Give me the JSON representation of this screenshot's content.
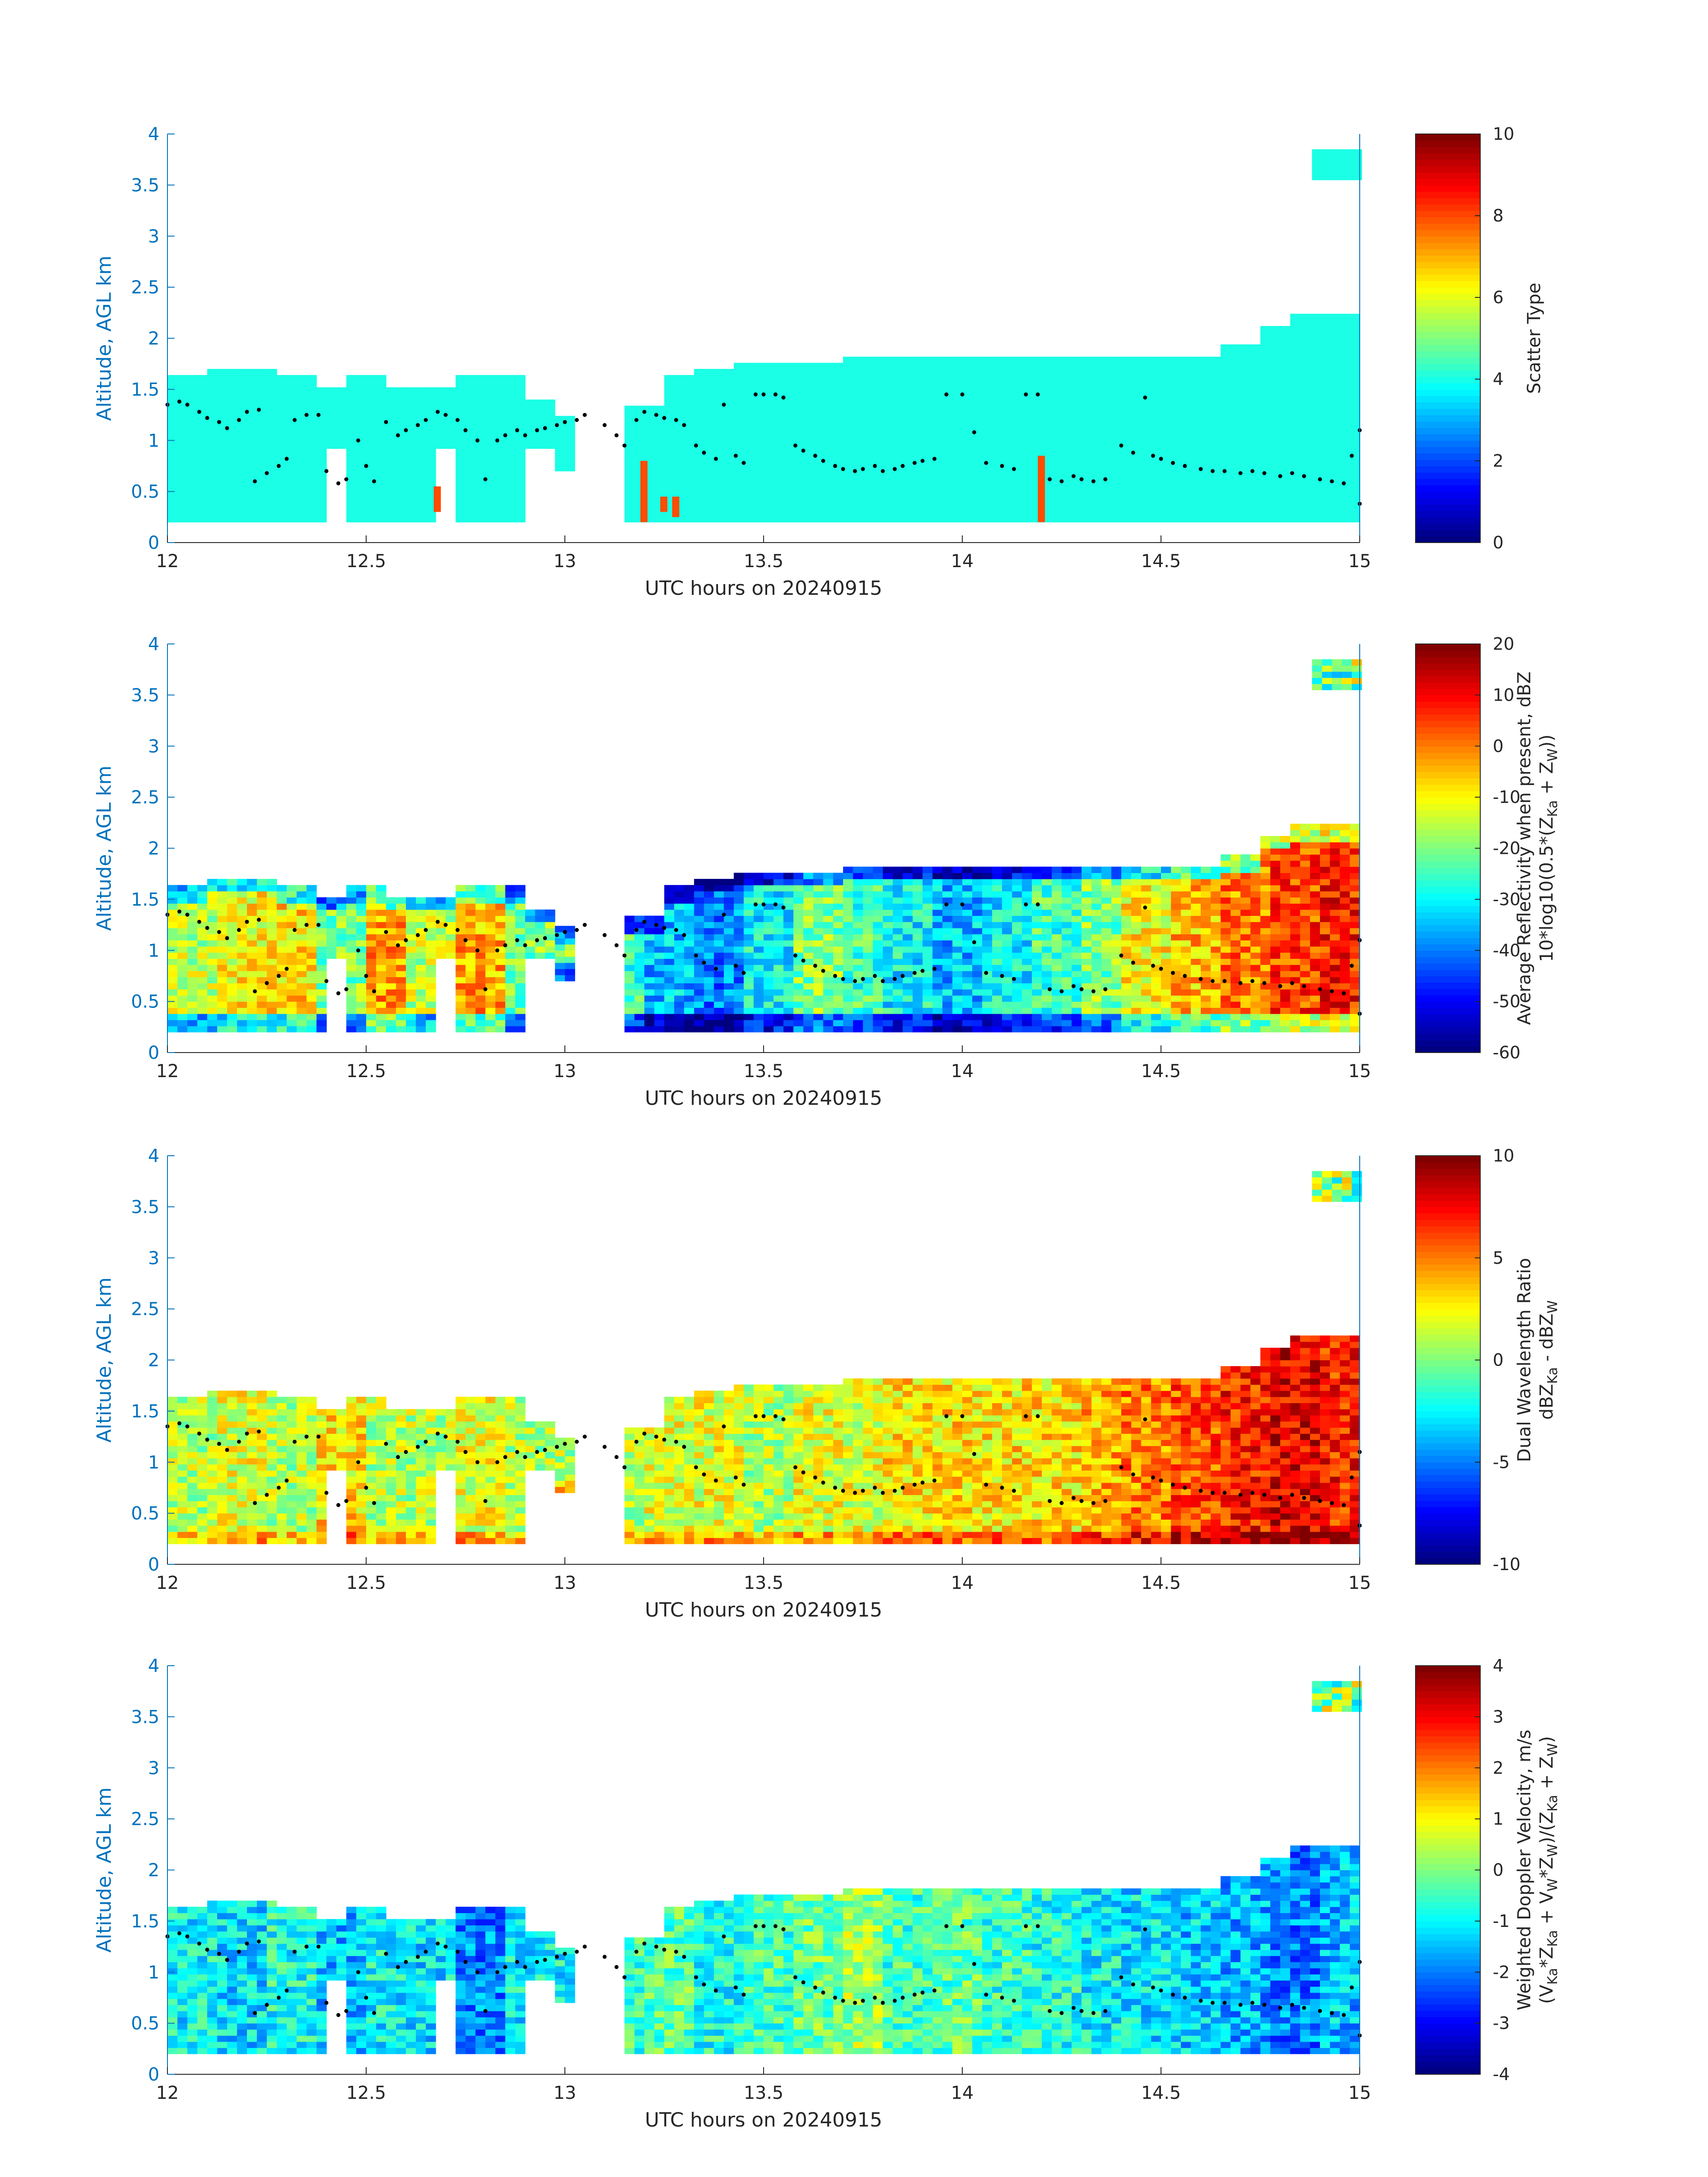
{
  "chart_data": [
    {
      "type": "heatmap",
      "panel": "scatter_type",
      "xlabel": "UTC hours on 20240915",
      "ylabel": "Altitude, AGL km",
      "xlim": [
        12,
        15
      ],
      "ylim": [
        0,
        4
      ],
      "xticks": [
        "12",
        "12.5",
        "13",
        "13.5",
        "14",
        "14.5",
        "15"
      ],
      "yticks": [
        "0",
        "0.5",
        "1",
        "1.5",
        "2",
        "2.5",
        "3",
        "3.5",
        "4"
      ],
      "colorbar": {
        "label_lines": [
          "Scatter Type"
        ],
        "clim": [
          0,
          10
        ],
        "ticks": [
          "0",
          "2",
          "4",
          "6",
          "8",
          "10"
        ]
      },
      "dominant_value": 4,
      "cloud_top_km": [
        1.6,
        1.7,
        1.7,
        1.6,
        1.5,
        1.6,
        1.5,
        1.5,
        1.6,
        1.6,
        1.4,
        1.2,
        null,
        1.3,
        1.6,
        1.7,
        1.75,
        1.75,
        1.75,
        1.8,
        1.8,
        1.8,
        1.8,
        1.8,
        1.8,
        1.8,
        1.8,
        1.8,
        1.8,
        1.8,
        1.9,
        2.1,
        2.2,
        2.2
      ],
      "cloud_base_km": [
        0.2,
        0.2,
        0.2,
        0.2,
        0.2,
        0.2,
        0.2,
        0.2,
        0.2,
        0.2,
        0.2,
        0.7,
        null,
        0.2,
        0.2,
        0.2,
        0.2,
        0.2,
        0.2,
        0.2,
        0.2,
        0.2,
        0.2,
        0.2,
        0.2,
        0.2,
        0.2,
        0.2,
        0.2,
        0.2,
        0.2,
        0.2,
        0.2,
        0.2
      ],
      "anomalies": [
        {
          "x": 12.67,
          "y0": 0.3,
          "y1": 0.55,
          "value": 8
        },
        {
          "x": 13.19,
          "y0": 0.2,
          "y1": 0.8,
          "value": 8
        },
        {
          "x": 13.24,
          "y0": 0.3,
          "y1": 0.45,
          "value": 8
        },
        {
          "x": 13.27,
          "y0": 0.25,
          "y1": 0.45,
          "value": 8
        },
        {
          "x": 14.19,
          "y0": 0.2,
          "y1": 0.85,
          "value": 8
        }
      ]
    },
    {
      "type": "heatmap",
      "panel": "reflectivity",
      "xlabel": "UTC hours on 20240915",
      "ylabel": "Altitude, AGL km",
      "xlim": [
        12,
        15
      ],
      "ylim": [
        0,
        4
      ],
      "xticks": [
        "12",
        "12.5",
        "13",
        "13.5",
        "14",
        "14.5",
        "15"
      ],
      "yticks": [
        "0",
        "0.5",
        "1",
        "1.5",
        "2",
        "2.5",
        "3",
        "3.5",
        "4"
      ],
      "colorbar": {
        "label_lines": [
          "Average Reflectivity when present, dBZ",
          "10*log10(0.5*(Z",
          "Ka",
          " + Z",
          "W",
          "))"
        ],
        "clim": [
          -60,
          20
        ],
        "ticks": [
          "-60",
          "-50",
          "-40",
          "-30",
          "-20",
          "-10",
          "0",
          "10",
          "20"
        ]
      },
      "segment_means_dbz": [
        -15,
        -10,
        -8,
        -20,
        -2,
        -15,
        -3,
        -20,
        null,
        -25,
        -35,
        -40,
        -30,
        -20,
        -25,
        -30,
        -35,
        -30,
        -25,
        -20,
        -10,
        -5,
        0,
        5,
        8
      ]
    },
    {
      "type": "heatmap",
      "panel": "dual_wavelength_ratio",
      "xlabel": "UTC hours on 20240915",
      "ylabel": "Altitude, AGL km",
      "xlim": [
        12,
        15
      ],
      "ylim": [
        0,
        4
      ],
      "xticks": [
        "12",
        "12.5",
        "13",
        "13.5",
        "14",
        "14.5",
        "15"
      ],
      "yticks": [
        "0",
        "0.5",
        "1",
        "1.5",
        "2",
        "2.5",
        "3",
        "3.5",
        "4"
      ],
      "colorbar": {
        "label_lines": [
          "Dual Wavelength Ratio",
          "dBZ",
          "Ka",
          " - dBZ",
          "W"
        ],
        "clim": [
          -10,
          10
        ],
        "ticks": [
          "-10",
          "-5",
          "0",
          "5",
          "10"
        ]
      },
      "segment_means_db": [
        1,
        2,
        1,
        3,
        1,
        1,
        2,
        1,
        null,
        1,
        2,
        2,
        1,
        2,
        2,
        3,
        3,
        3,
        3,
        4,
        5,
        6,
        7,
        8,
        7
      ]
    },
    {
      "type": "heatmap",
      "panel": "doppler_velocity",
      "xlabel": "UTC hours on 20240915",
      "ylabel": "Altitude, AGL km",
      "xlim": [
        12,
        15
      ],
      "ylim": [
        0,
        4
      ],
      "xticks": [
        "12",
        "12.5",
        "13",
        "13.5",
        "14",
        "14.5",
        "15"
      ],
      "yticks": [
        "0",
        "0.5",
        "1",
        "1.5",
        "2",
        "2.5",
        "3",
        "3.5",
        "4"
      ],
      "colorbar": {
        "label_lines": [
          "Weighted Doppler Velocity, m/s",
          "(V",
          "Ka",
          "*Z",
          "Ka",
          " + V",
          "W",
          "*Z",
          "W",
          ")/(Z",
          "Ka",
          " + Z",
          "W",
          ")"
        ],
        "clim": [
          -4,
          4
        ],
        "ticks": [
          "-4",
          "-3",
          "-2",
          "-1",
          "0",
          "1",
          "2",
          "3",
          "4"
        ]
      },
      "segment_means_ms": [
        -1,
        -1.2,
        -0.8,
        -1.5,
        -1,
        -1.2,
        -2,
        -1,
        null,
        -0.5,
        -0.3,
        -0.8,
        -0.5,
        -0.2,
        0.3,
        -0.5,
        -0.3,
        -0.6,
        -0.8,
        -1,
        -1.2,
        -1.4,
        -1.6,
        -2,
        -1.5
      ]
    }
  ],
  "layer_points": [
    [
      12.0,
      1.35
    ],
    [
      12.03,
      1.38
    ],
    [
      12.05,
      1.35
    ],
    [
      12.08,
      1.28
    ],
    [
      12.1,
      1.22
    ],
    [
      12.13,
      1.18
    ],
    [
      12.15,
      1.12
    ],
    [
      12.18,
      1.2
    ],
    [
      12.2,
      1.28
    ],
    [
      12.23,
      1.3
    ],
    [
      12.22,
      0.6
    ],
    [
      12.25,
      0.68
    ],
    [
      12.28,
      0.75
    ],
    [
      12.3,
      0.82
    ],
    [
      12.32,
      1.2
    ],
    [
      12.35,
      1.25
    ],
    [
      12.38,
      1.25
    ],
    [
      12.4,
      0.7
    ],
    [
      12.43,
      0.58
    ],
    [
      12.45,
      0.62
    ],
    [
      12.48,
      1.0
    ],
    [
      12.5,
      0.75
    ],
    [
      12.52,
      0.6
    ],
    [
      12.55,
      1.18
    ],
    [
      12.58,
      1.05
    ],
    [
      12.6,
      1.1
    ],
    [
      12.63,
      1.15
    ],
    [
      12.65,
      1.2
    ],
    [
      12.68,
      1.28
    ],
    [
      12.7,
      1.25
    ],
    [
      12.73,
      1.2
    ],
    [
      12.75,
      1.1
    ],
    [
      12.78,
      1.0
    ],
    [
      12.8,
      0.62
    ],
    [
      12.83,
      1.0
    ],
    [
      12.85,
      1.05
    ],
    [
      12.88,
      1.1
    ],
    [
      12.9,
      1.05
    ],
    [
      12.93,
      1.1
    ],
    [
      12.95,
      1.12
    ],
    [
      12.98,
      1.15
    ],
    [
      13.0,
      1.18
    ],
    [
      13.03,
      1.2
    ],
    [
      13.05,
      1.25
    ],
    [
      13.1,
      1.15
    ],
    [
      13.13,
      1.05
    ],
    [
      13.15,
      0.95
    ],
    [
      13.18,
      1.2
    ],
    [
      13.2,
      1.28
    ],
    [
      13.23,
      1.25
    ],
    [
      13.25,
      1.22
    ],
    [
      13.28,
      1.2
    ],
    [
      13.3,
      1.15
    ],
    [
      13.33,
      0.95
    ],
    [
      13.35,
      0.88
    ],
    [
      13.38,
      0.82
    ],
    [
      13.4,
      1.35
    ],
    [
      13.43,
      0.85
    ],
    [
      13.45,
      0.78
    ],
    [
      13.48,
      1.45
    ],
    [
      13.5,
      1.45
    ],
    [
      13.53,
      1.45
    ],
    [
      13.55,
      1.42
    ],
    [
      13.58,
      0.95
    ],
    [
      13.6,
      0.9
    ],
    [
      13.63,
      0.85
    ],
    [
      13.65,
      0.8
    ],
    [
      13.68,
      0.75
    ],
    [
      13.7,
      0.72
    ],
    [
      13.73,
      0.7
    ],
    [
      13.75,
      0.72
    ],
    [
      13.78,
      0.75
    ],
    [
      13.8,
      0.7
    ],
    [
      13.83,
      0.72
    ],
    [
      13.85,
      0.75
    ],
    [
      13.88,
      0.78
    ],
    [
      13.9,
      0.8
    ],
    [
      13.93,
      0.82
    ],
    [
      13.96,
      1.45
    ],
    [
      14.0,
      1.45
    ],
    [
      14.03,
      1.08
    ],
    [
      14.06,
      0.78
    ],
    [
      14.1,
      0.75
    ],
    [
      14.13,
      0.72
    ],
    [
      14.16,
      1.45
    ],
    [
      14.19,
      1.45
    ],
    [
      14.22,
      0.62
    ],
    [
      14.25,
      0.6
    ],
    [
      14.28,
      0.65
    ],
    [
      14.3,
      0.62
    ],
    [
      14.33,
      0.6
    ],
    [
      14.36,
      0.62
    ],
    [
      14.4,
      0.95
    ],
    [
      14.43,
      0.88
    ],
    [
      14.46,
      1.42
    ],
    [
      14.48,
      0.85
    ],
    [
      14.5,
      0.82
    ],
    [
      14.53,
      0.78
    ],
    [
      14.56,
      0.75
    ],
    [
      14.6,
      0.72
    ],
    [
      14.63,
      0.7
    ],
    [
      14.66,
      0.7
    ],
    [
      14.7,
      0.68
    ],
    [
      14.73,
      0.7
    ],
    [
      14.76,
      0.68
    ],
    [
      14.8,
      0.65
    ],
    [
      14.83,
      0.68
    ],
    [
      14.86,
      0.65
    ],
    [
      14.9,
      0.62
    ],
    [
      14.93,
      0.6
    ],
    [
      14.96,
      0.58
    ],
    [
      14.98,
      0.85
    ],
    [
      15.0,
      1.1
    ],
    [
      15.0,
      0.38
    ]
  ]
}
